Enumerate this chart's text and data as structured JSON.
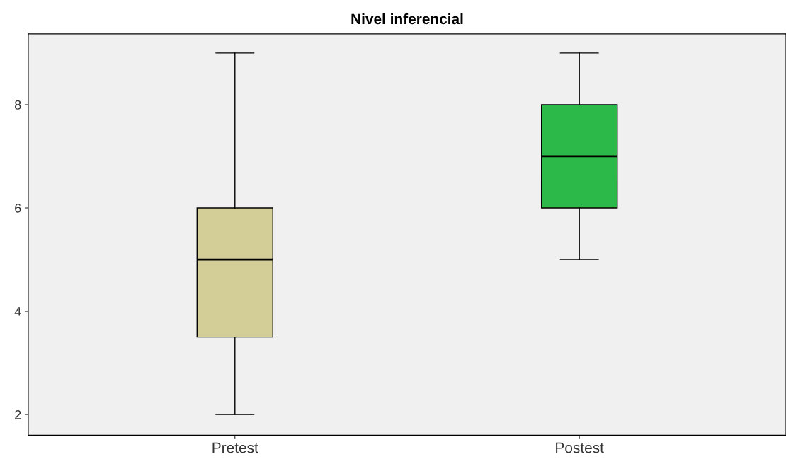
{
  "chart_data": {
    "type": "box",
    "title": "Nivel inferencial",
    "categories": [
      "Pretest",
      "Postest"
    ],
    "boxes": [
      {
        "low": 2,
        "q1": 3.5,
        "median": 5,
        "q3": 6,
        "high": 9
      },
      {
        "low": 5,
        "q1": 6,
        "median": 7,
        "q3": 8,
        "high": 9
      }
    ],
    "colors": [
      "#d3ce97",
      "#2db84a"
    ],
    "ylim": [
      1.6,
      9.37
    ],
    "yticks": [
      2,
      4,
      6,
      8
    ],
    "grid": false,
    "legend": false
  }
}
